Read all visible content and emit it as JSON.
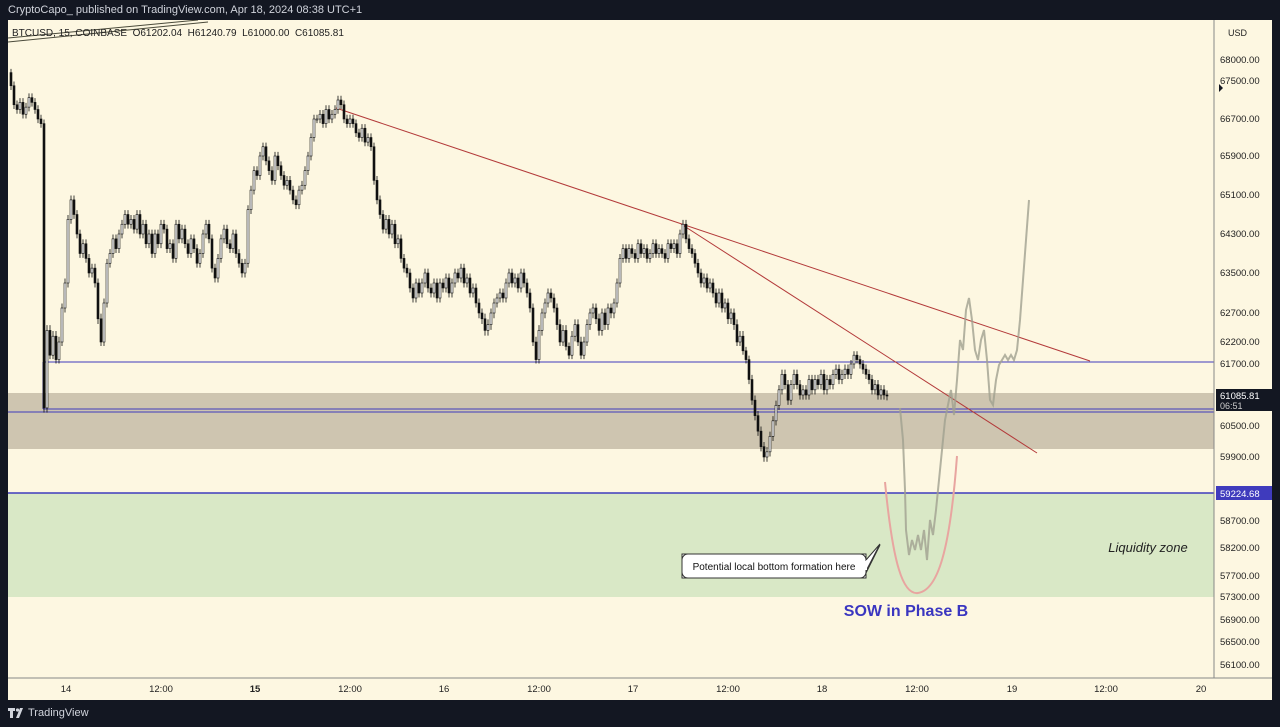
{
  "header": {
    "published_text": "CryptoCapo_ published on TradingView.com, Apr 18, 2024 08:38 UTC+1"
  },
  "footer": {
    "brand": "TradingView"
  },
  "chart_data": {
    "type": "candlestick",
    "symbol_line": "BTCUSD, 15, COINBASE  O61202.04  H61240.79  L61000.00  C61085.81",
    "currency": "USD",
    "y_ticks": [
      "68000.00",
      "67500.00",
      "66700.00",
      "65900.00",
      "65100.00",
      "64300.00",
      "63500.00",
      "62700.00",
      "62200.00",
      "61700.00",
      "60500.00",
      "59900.00",
      "58700.00",
      "58200.00",
      "57700.00",
      "57300.00",
      "56900.00",
      "56500.00",
      "56100.00"
    ],
    "x_ticks": [
      "14",
      "12:00",
      "15",
      "12:00",
      "16",
      "12:00",
      "17",
      "12:00",
      "18",
      "12:00",
      "19",
      "12:00",
      "20"
    ],
    "last_price": "61085.81",
    "countdown": "06:51",
    "level_label": "59224.68",
    "zones": {
      "liquidity_label": "Liquidity zone"
    },
    "annotations": {
      "callout": "Potential local bottom formation here",
      "phase": "SOW in Phase B"
    },
    "price_path": [
      [
        0,
        67700
      ],
      [
        3,
        67400
      ],
      [
        6,
        67000
      ],
      [
        9,
        66900
      ],
      [
        12,
        67050
      ],
      [
        15,
        66800
      ],
      [
        18,
        66950
      ],
      [
        21,
        67150
      ],
      [
        24,
        67050
      ],
      [
        27,
        66900
      ],
      [
        30,
        66700
      ],
      [
        33,
        66600
      ],
      [
        36,
        60850
      ],
      [
        39,
        62400
      ],
      [
        42,
        61900
      ],
      [
        45,
        62300
      ],
      [
        48,
        61800
      ],
      [
        51,
        62200
      ],
      [
        54,
        62800
      ],
      [
        57,
        63300
      ],
      [
        60,
        64600
      ],
      [
        63,
        65000
      ],
      [
        66,
        64700
      ],
      [
        69,
        64300
      ],
      [
        72,
        63900
      ],
      [
        75,
        64100
      ],
      [
        78,
        63800
      ],
      [
        81,
        63500
      ],
      [
        84,
        63600
      ],
      [
        87,
        63300
      ],
      [
        90,
        62600
      ],
      [
        93,
        62200
      ],
      [
        96,
        62900
      ],
      [
        99,
        63700
      ],
      [
        102,
        63900
      ],
      [
        105,
        64200
      ],
      [
        108,
        64000
      ],
      [
        111,
        64300
      ],
      [
        114,
        64500
      ],
      [
        117,
        64700
      ],
      [
        120,
        64500
      ],
      [
        123,
        64600
      ],
      [
        126,
        64400
      ],
      [
        129,
        64700
      ],
      [
        132,
        64300
      ],
      [
        135,
        64500
      ],
      [
        138,
        64100
      ],
      [
        141,
        64300
      ],
      [
        144,
        63900
      ],
      [
        147,
        64300
      ],
      [
        150,
        64100
      ],
      [
        153,
        64500
      ],
      [
        156,
        64400
      ],
      [
        159,
        64000
      ],
      [
        162,
        64100
      ],
      [
        165,
        63800
      ],
      [
        168,
        64500
      ],
      [
        171,
        64200
      ],
      [
        174,
        64400
      ],
      [
        177,
        64100
      ],
      [
        180,
        63900
      ],
      [
        183,
        64200
      ],
      [
        186,
        64000
      ],
      [
        189,
        63700
      ],
      [
        192,
        63900
      ],
      [
        195,
        64300
      ],
      [
        198,
        64500
      ],
      [
        201,
        64200
      ],
      [
        204,
        63600
      ],
      [
        207,
        63400
      ],
      [
        210,
        63800
      ],
      [
        213,
        64200
      ],
      [
        216,
        64400
      ],
      [
        219,
        64100
      ],
      [
        222,
        64000
      ],
      [
        225,
        64300
      ],
      [
        228,
        63900
      ],
      [
        231,
        63700
      ],
      [
        234,
        63500
      ],
      [
        237,
        63700
      ],
      [
        240,
        64800
      ],
      [
        243,
        65200
      ],
      [
        246,
        65600
      ],
      [
        249,
        65500
      ],
      [
        252,
        65900
      ],
      [
        255,
        66100
      ],
      [
        258,
        65800
      ],
      [
        261,
        65600
      ],
      [
        264,
        65400
      ],
      [
        267,
        65900
      ],
      [
        270,
        65700
      ],
      [
        273,
        65500
      ],
      [
        276,
        65300
      ],
      [
        279,
        65400
      ],
      [
        282,
        65200
      ],
      [
        285,
        65000
      ],
      [
        288,
        64900
      ],
      [
        291,
        65200
      ],
      [
        294,
        65300
      ],
      [
        297,
        65600
      ],
      [
        300,
        65900
      ],
      [
        303,
        66300
      ],
      [
        306,
        66700
      ],
      [
        309,
        66700
      ],
      [
        312,
        66800
      ],
      [
        315,
        66600
      ],
      [
        318,
        66900
      ],
      [
        321,
        66700
      ],
      [
        324,
        66800
      ],
      [
        327,
        66900
      ],
      [
        330,
        67100
      ],
      [
        333,
        67000
      ],
      [
        336,
        66700
      ],
      [
        339,
        66600
      ],
      [
        342,
        66700
      ],
      [
        345,
        66600
      ],
      [
        348,
        66400
      ],
      [
        351,
        66300
      ],
      [
        354,
        66500
      ],
      [
        357,
        66200
      ],
      [
        360,
        66300
      ],
      [
        363,
        66100
      ],
      [
        366,
        65400
      ],
      [
        369,
        65000
      ],
      [
        372,
        64700
      ],
      [
        375,
        64400
      ],
      [
        378,
        64600
      ],
      [
        381,
        64300
      ],
      [
        384,
        64500
      ],
      [
        387,
        64100
      ],
      [
        390,
        64200
      ],
      [
        393,
        63800
      ],
      [
        396,
        63600
      ],
      [
        399,
        63500
      ],
      [
        402,
        63200
      ],
      [
        405,
        63000
      ],
      [
        408,
        63300
      ],
      [
        411,
        63100
      ],
      [
        414,
        63300
      ],
      [
        417,
        63500
      ],
      [
        420,
        63200
      ],
      [
        423,
        63100
      ],
      [
        426,
        63300
      ],
      [
        429,
        63000
      ],
      [
        432,
        63300
      ],
      [
        435,
        63200
      ],
      [
        438,
        63400
      ],
      [
        441,
        63100
      ],
      [
        444,
        63300
      ],
      [
        447,
        63500
      ],
      [
        450,
        63400
      ],
      [
        453,
        63600
      ],
      [
        456,
        63300
      ],
      [
        459,
        63400
      ],
      [
        462,
        63100
      ],
      [
        465,
        63200
      ],
      [
        468,
        62900
      ],
      [
        471,
        62700
      ],
      [
        474,
        62600
      ],
      [
        477,
        62400
      ],
      [
        480,
        62500
      ],
      [
        483,
        62700
      ],
      [
        486,
        62900
      ],
      [
        489,
        63000
      ],
      [
        492,
        63100
      ],
      [
        495,
        63000
      ],
      [
        498,
        63300
      ],
      [
        501,
        63500
      ],
      [
        504,
        63300
      ],
      [
        507,
        63400
      ],
      [
        510,
        63200
      ],
      [
        513,
        63500
      ],
      [
        516,
        63300
      ],
      [
        519,
        63100
      ],
      [
        522,
        62800
      ],
      [
        525,
        62200
      ],
      [
        528,
        61800
      ],
      [
        531,
        62400
      ],
      [
        534,
        62700
      ],
      [
        537,
        62900
      ],
      [
        540,
        63100
      ],
      [
        543,
        63000
      ],
      [
        546,
        62800
      ],
      [
        549,
        62500
      ],
      [
        552,
        62200
      ],
      [
        555,
        62400
      ],
      [
        558,
        62100
      ],
      [
        561,
        61900
      ],
      [
        564,
        62300
      ],
      [
        567,
        62500
      ],
      [
        570,
        62200
      ],
      [
        573,
        61900
      ],
      [
        576,
        62200
      ],
      [
        579,
        62500
      ],
      [
        582,
        62700
      ],
      [
        585,
        62800
      ],
      [
        588,
        62600
      ],
      [
        591,
        62400
      ],
      [
        594,
        62700
      ],
      [
        597,
        62500
      ],
      [
        600,
        62800
      ],
      [
        603,
        62700
      ],
      [
        606,
        62900
      ],
      [
        609,
        63300
      ],
      [
        612,
        63800
      ],
      [
        615,
        64000
      ],
      [
        618,
        63800
      ],
      [
        621,
        64000
      ],
      [
        624,
        63900
      ],
      [
        627,
        63800
      ],
      [
        630,
        64100
      ],
      [
        633,
        63900
      ],
      [
        636,
        64000
      ],
      [
        639,
        63800
      ],
      [
        642,
        63900
      ],
      [
        645,
        64100
      ],
      [
        648,
        63900
      ],
      [
        651,
        64000
      ],
      [
        654,
        63900
      ],
      [
        657,
        63800
      ],
      [
        660,
        64100
      ],
      [
        663,
        64000
      ],
      [
        666,
        64100
      ],
      [
        669,
        63900
      ],
      [
        672,
        64300
      ],
      [
        675,
        64500
      ],
      [
        678,
        64200
      ],
      [
        681,
        64000
      ],
      [
        684,
        63900
      ],
      [
        687,
        63700
      ],
      [
        690,
        63500
      ],
      [
        693,
        63300
      ],
      [
        696,
        63400
      ],
      [
        699,
        63200
      ],
      [
        702,
        63300
      ],
      [
        705,
        63100
      ],
      [
        708,
        62900
      ],
      [
        711,
        63100
      ],
      [
        714,
        62800
      ],
      [
        717,
        62900
      ],
      [
        720,
        62600
      ],
      [
        723,
        62700
      ],
      [
        726,
        62500
      ],
      [
        729,
        62200
      ],
      [
        732,
        62300
      ],
      [
        735,
        62000
      ],
      [
        738,
        61800
      ],
      [
        741,
        61400
      ],
      [
        744,
        61000
      ],
      [
        747,
        60700
      ],
      [
        750,
        60400
      ],
      [
        753,
        60100
      ],
      [
        756,
        59900
      ],
      [
        759,
        60000
      ],
      [
        762,
        60300
      ],
      [
        765,
        60600
      ],
      [
        768,
        60900
      ],
      [
        771,
        61200
      ],
      [
        774,
        61500
      ],
      [
        777,
        61300
      ],
      [
        780,
        61000
      ],
      [
        783,
        61300
      ],
      [
        786,
        61500
      ],
      [
        789,
        61300
      ],
      [
        792,
        61100
      ],
      [
        795,
        61200
      ],
      [
        798,
        61100
      ],
      [
        801,
        61400
      ],
      [
        804,
        61200
      ],
      [
        807,
        61400
      ],
      [
        810,
        61300
      ],
      [
        813,
        61500
      ],
      [
        816,
        61200
      ],
      [
        819,
        61400
      ],
      [
        822,
        61300
      ],
      [
        825,
        61500
      ],
      [
        828,
        61600
      ],
      [
        831,
        61400
      ],
      [
        834,
        61500
      ],
      [
        837,
        61600
      ],
      [
        840,
        61500
      ],
      [
        843,
        61700
      ],
      [
        846,
        61900
      ],
      [
        849,
        61800
      ],
      [
        852,
        61700
      ],
      [
        855,
        61600
      ],
      [
        858,
        61500
      ],
      [
        861,
        61400
      ],
      [
        864,
        61200
      ],
      [
        867,
        61300
      ],
      [
        870,
        61100
      ],
      [
        873,
        61200
      ],
      [
        876,
        61100
      ],
      [
        879,
        61085
      ]
    ]
  }
}
